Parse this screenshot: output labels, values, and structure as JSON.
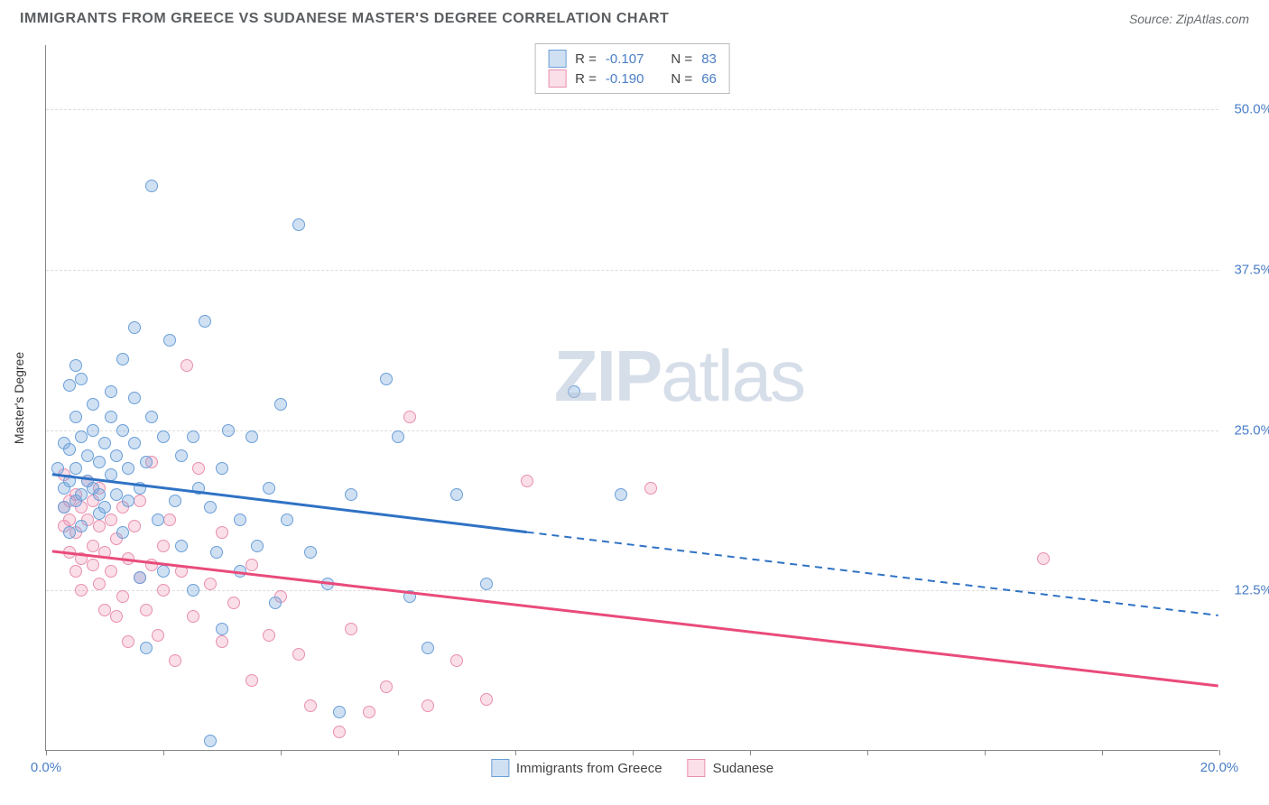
{
  "header": {
    "title": "IMMIGRANTS FROM GREECE VS SUDANESE MASTER'S DEGREE CORRELATION CHART",
    "source": "Source: ZipAtlas.com"
  },
  "watermark": {
    "prefix": "ZIP",
    "suffix": "atlas"
  },
  "chart": {
    "type": "scatter",
    "background_color": "#ffffff",
    "grid_color": "#dcdcdc",
    "axis_color": "#888888",
    "y_label": "Master's Degree",
    "x_range": [
      0,
      20
    ],
    "y_range": [
      0,
      55
    ],
    "x_ticks": [
      0,
      2,
      4,
      6,
      8,
      10,
      12,
      14,
      16,
      18,
      20
    ],
    "x_tick_labels": {
      "0": "0.0%",
      "20": "20.0%"
    },
    "y_ticks": [
      12.5,
      25.0,
      37.5,
      50.0
    ],
    "y_tick_labels": [
      "12.5%",
      "25.0%",
      "37.5%",
      "50.0%"
    ],
    "marker_radius": 7,
    "series": {
      "greece": {
        "label": "Immigrants from Greece",
        "R": "-0.107",
        "N": "83",
        "fill": "rgba(120,165,220,0.35)",
        "stroke": "#6a9fd8",
        "line_color": "#2f72c4",
        "line_width": 3,
        "trend": {
          "x1": 0.1,
          "y1": 21.5,
          "x2": 8.2,
          "y2": 17.0,
          "dash_x2": 20,
          "dash_y2": 10.5
        },
        "points": [
          [
            0.2,
            22
          ],
          [
            0.3,
            20.5
          ],
          [
            0.3,
            19
          ],
          [
            0.3,
            24
          ],
          [
            0.4,
            21
          ],
          [
            0.4,
            28.5
          ],
          [
            0.4,
            23.5
          ],
          [
            0.4,
            17
          ],
          [
            0.5,
            30
          ],
          [
            0.5,
            19.5
          ],
          [
            0.5,
            22
          ],
          [
            0.5,
            26
          ],
          [
            0.6,
            20
          ],
          [
            0.6,
            24.5
          ],
          [
            0.6,
            29
          ],
          [
            0.6,
            17.5
          ],
          [
            0.7,
            23
          ],
          [
            0.7,
            21
          ],
          [
            0.8,
            25
          ],
          [
            0.8,
            20.5
          ],
          [
            0.8,
            27
          ],
          [
            0.9,
            18.5
          ],
          [
            0.9,
            22.5
          ],
          [
            0.9,
            20
          ],
          [
            1.0,
            24
          ],
          [
            1.0,
            19
          ],
          [
            1.1,
            21.5
          ],
          [
            1.1,
            26
          ],
          [
            1.1,
            28
          ],
          [
            1.2,
            20
          ],
          [
            1.2,
            23
          ],
          [
            1.3,
            30.5
          ],
          [
            1.3,
            17
          ],
          [
            1.3,
            25
          ],
          [
            1.4,
            22
          ],
          [
            1.4,
            19.5
          ],
          [
            1.5,
            27.5
          ],
          [
            1.5,
            33
          ],
          [
            1.5,
            24
          ],
          [
            1.6,
            20.5
          ],
          [
            1.6,
            13.5
          ],
          [
            1.7,
            8
          ],
          [
            1.7,
            22.5
          ],
          [
            1.8,
            44
          ],
          [
            1.8,
            26
          ],
          [
            1.9,
            18
          ],
          [
            2.0,
            24.5
          ],
          [
            2.0,
            14
          ],
          [
            2.1,
            32
          ],
          [
            2.2,
            19.5
          ],
          [
            2.3,
            23
          ],
          [
            2.3,
            16
          ],
          [
            2.5,
            24.5
          ],
          [
            2.5,
            12.5
          ],
          [
            2.6,
            20.5
          ],
          [
            2.7,
            33.5
          ],
          [
            2.8,
            19
          ],
          [
            2.9,
            15.5
          ],
          [
            3.0,
            22
          ],
          [
            3.0,
            9.5
          ],
          [
            3.1,
            25
          ],
          [
            3.3,
            18
          ],
          [
            3.3,
            14
          ],
          [
            3.5,
            24.5
          ],
          [
            3.6,
            16
          ],
          [
            3.8,
            20.5
          ],
          [
            3.9,
            11.5
          ],
          [
            4.0,
            27
          ],
          [
            4.1,
            18
          ],
          [
            4.3,
            41
          ],
          [
            4.5,
            15.5
          ],
          [
            4.8,
            13
          ],
          [
            5.0,
            3
          ],
          [
            5.2,
            20
          ],
          [
            5.8,
            29
          ],
          [
            6.0,
            24.5
          ],
          [
            6.2,
            12
          ],
          [
            6.5,
            8
          ],
          [
            7.0,
            20
          ],
          [
            7.5,
            13
          ],
          [
            9.0,
            28
          ],
          [
            9.8,
            20
          ],
          [
            2.8,
            0.8
          ]
        ]
      },
      "sudanese": {
        "label": "Sudanese",
        "R": "-0.190",
        "N": "66",
        "fill": "rgba(240,150,180,0.3)",
        "stroke": "#e98fb0",
        "line_color": "#e94b7a",
        "line_width": 3,
        "trend": {
          "x1": 0.1,
          "y1": 15.5,
          "x2": 20,
          "y2": 5.0
        },
        "points": [
          [
            0.3,
            21.5
          ],
          [
            0.3,
            19
          ],
          [
            0.3,
            17.5
          ],
          [
            0.4,
            19.5
          ],
          [
            0.4,
            18
          ],
          [
            0.4,
            15.5
          ],
          [
            0.5,
            20
          ],
          [
            0.5,
            14
          ],
          [
            0.5,
            17
          ],
          [
            0.6,
            19
          ],
          [
            0.6,
            15
          ],
          [
            0.6,
            12.5
          ],
          [
            0.7,
            18
          ],
          [
            0.7,
            21
          ],
          [
            0.8,
            16
          ],
          [
            0.8,
            14.5
          ],
          [
            0.8,
            19.5
          ],
          [
            0.9,
            17.5
          ],
          [
            0.9,
            13
          ],
          [
            0.9,
            20.5
          ],
          [
            1.0,
            15.5
          ],
          [
            1.0,
            11
          ],
          [
            1.1,
            18
          ],
          [
            1.1,
            14
          ],
          [
            1.2,
            16.5
          ],
          [
            1.2,
            10.5
          ],
          [
            1.3,
            19
          ],
          [
            1.3,
            12
          ],
          [
            1.4,
            15
          ],
          [
            1.4,
            8.5
          ],
          [
            1.5,
            17.5
          ],
          [
            1.6,
            13.5
          ],
          [
            1.6,
            19.5
          ],
          [
            1.7,
            11
          ],
          [
            1.8,
            22.5
          ],
          [
            1.8,
            14.5
          ],
          [
            1.9,
            9
          ],
          [
            2.0,
            16
          ],
          [
            2.0,
            12.5
          ],
          [
            2.1,
            18
          ],
          [
            2.2,
            7
          ],
          [
            2.3,
            14
          ],
          [
            2.4,
            30
          ],
          [
            2.5,
            10.5
          ],
          [
            2.6,
            22
          ],
          [
            2.8,
            13
          ],
          [
            3.0,
            17
          ],
          [
            3.0,
            8.5
          ],
          [
            3.2,
            11.5
          ],
          [
            3.5,
            14.5
          ],
          [
            3.5,
            5.5
          ],
          [
            3.8,
            9
          ],
          [
            4.0,
            12
          ],
          [
            4.3,
            7.5
          ],
          [
            4.5,
            3.5
          ],
          [
            5.0,
            1.5
          ],
          [
            5.2,
            9.5
          ],
          [
            5.5,
            3
          ],
          [
            5.8,
            5
          ],
          [
            6.2,
            26
          ],
          [
            6.5,
            3.5
          ],
          [
            7.0,
            7
          ],
          [
            7.5,
            4
          ],
          [
            8.2,
            21
          ],
          [
            10.3,
            20.5
          ],
          [
            17.0,
            15
          ]
        ]
      }
    }
  },
  "legend_top": {
    "R_label": "R =",
    "N_label": "N ="
  }
}
